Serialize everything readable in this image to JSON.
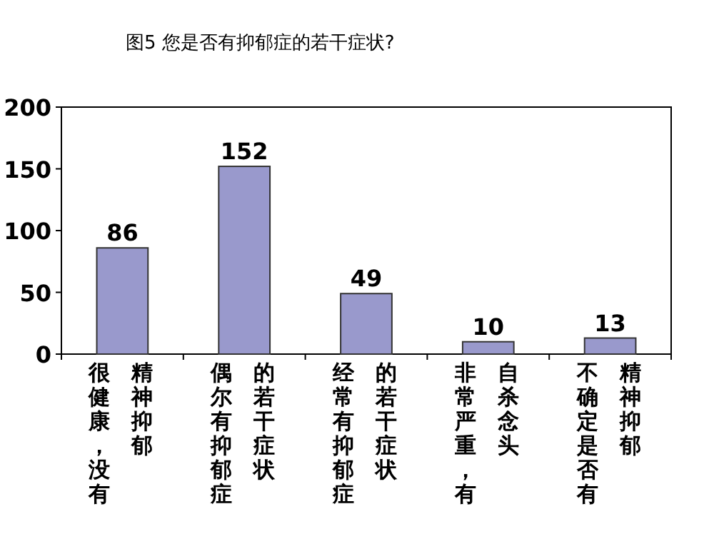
{
  "chart_data": {
    "type": "bar",
    "title": "图5 您是否有抑郁症的若干症状?",
    "categories": [
      "很健康，没有精神抑郁",
      "偶尔有抑郁症的若干症状",
      "经常有抑郁症的若干症状",
      "非常严重，有自杀念头",
      "不确定是否有精神抑郁"
    ],
    "values": [
      86,
      152,
      49,
      10,
      13
    ],
    "color": "#9999cc",
    "ylim": [
      0,
      200
    ],
    "yticks": [
      0,
      50,
      100,
      150,
      200
    ],
    "data_labels": true
  }
}
